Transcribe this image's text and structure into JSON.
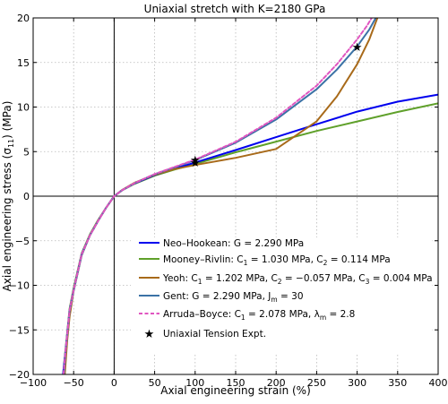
{
  "chart_data": {
    "type": "line",
    "title": "Uniaxial stretch with K=2180 GPa",
    "xlabel": "Axial engineering strain (%)",
    "ylabel": "Axial engineering stress (σ",
    "ylabel_sub": "11",
    "ylabel_suffix": ") (MPa)",
    "xlim": [
      -100,
      400
    ],
    "ylim": [
      -20,
      20
    ],
    "xticks": [
      -100,
      -50,
      0,
      50,
      100,
      150,
      200,
      250,
      300,
      350,
      400
    ],
    "xtick_labels": [
      "−100",
      "−50",
      "0",
      "50",
      "100",
      "150",
      "200",
      "250",
      "300",
      "350",
      "400"
    ],
    "yticks": [
      -20,
      -15,
      -10,
      -5,
      0,
      5,
      10,
      15,
      20
    ],
    "ytick_labels": [
      "−20",
      "−15",
      "−10",
      "−5",
      "0",
      "5",
      "10",
      "15",
      "20"
    ],
    "grid": true,
    "legend_position": "lower-right",
    "series": [
      {
        "name": "Neo–Hookean: G = 2.290 MPa",
        "color": "#0000ee",
        "style": "solid",
        "x": [
          -63,
          -60,
          -55,
          -50,
          -40,
          -30,
          -20,
          -10,
          0,
          10,
          25,
          50,
          75,
          100,
          150,
          200,
          250,
          300,
          350,
          400
        ],
        "y": [
          -20.0,
          -17.3,
          -12.8,
          -10.5,
          -6.5,
          -4.4,
          -2.8,
          -1.3,
          0.0,
          0.68,
          1.43,
          2.37,
          3.1,
          3.78,
          5.18,
          6.62,
          8.07,
          9.49,
          10.6,
          11.4
        ]
      },
      {
        "name": "Mooney–Rivlin: C1 = 1.030 MPa, C2 = 0.114 MPa",
        "label_parts": [
          "Mooney–Rivlin: C",
          "1",
          " = 1.030 MPa, C",
          "2",
          " = 0.114 MPa"
        ],
        "color": "#5fa02a",
        "style": "solid",
        "x": [
          -63,
          -60,
          -55,
          -50,
          -40,
          -30,
          -20,
          -10,
          0,
          10,
          25,
          50,
          75,
          100,
          150,
          200,
          250,
          300,
          350,
          400
        ],
        "y": [
          -20.0,
          -17.1,
          -12.6,
          -10.3,
          -6.4,
          -4.3,
          -2.7,
          -1.3,
          0.0,
          0.66,
          1.38,
          2.3,
          3.0,
          3.62,
          4.92,
          6.12,
          7.32,
          8.38,
          9.45,
          10.42
        ]
      },
      {
        "name": "Yeoh: C1 = 1.202 MPa, C2 = −0.057 MPa, C3 = 0.004 MPa",
        "label_parts": [
          "Yeoh: C",
          "1",
          " = 1.202 MPa, C",
          "2",
          " = −0.057 MPa, C",
          "3",
          " = 0.004 MPa"
        ],
        "color": "#a86a1a",
        "style": "solid",
        "x": [
          -61,
          -58,
          -55,
          -50,
          -40,
          -30,
          -20,
          -10,
          0,
          10,
          25,
          50,
          75,
          100,
          150,
          200,
          250,
          275,
          300,
          315,
          325
        ],
        "y": [
          -20.0,
          -16.2,
          -13.5,
          -10.6,
          -6.6,
          -4.4,
          -2.8,
          -1.3,
          0.0,
          0.7,
          1.5,
          2.4,
          3.05,
          3.5,
          4.3,
          5.3,
          8.4,
          11.2,
          14.8,
          17.6,
          20.0
        ]
      },
      {
        "name": "Gent: G = 2.290 MPa, Jm = 30",
        "label_parts": [
          "Gent: G = 2.290 MPa, J",
          "m",
          " = 30"
        ],
        "color": "#3b72a6",
        "style": "solid",
        "x": [
          -62,
          -60,
          -55,
          -50,
          -40,
          -30,
          -20,
          -10,
          0,
          10,
          25,
          50,
          75,
          100,
          150,
          200,
          250,
          275,
          300,
          315,
          323
        ],
        "y": [
          -20.0,
          -17.4,
          -12.9,
          -10.6,
          -6.6,
          -4.4,
          -2.8,
          -1.3,
          0.0,
          0.68,
          1.45,
          2.45,
          3.25,
          4.05,
          6.0,
          8.6,
          12.0,
          14.2,
          16.8,
          18.7,
          20.0
        ]
      },
      {
        "name": "Arruda–Boyce: C1 = 2.078 MPa, λm = 2.8",
        "label_parts": [
          "Arruda–Boyce: C",
          "1",
          " = 2.078 MPa, λ",
          "m",
          " = 2.8"
        ],
        "color": "#e055c0",
        "style": "dashed",
        "x": [
          -62.5,
          -60,
          -55,
          -50,
          -40,
          -30,
          -20,
          -10,
          0,
          10,
          25,
          50,
          75,
          100,
          150,
          200,
          250,
          275,
          300,
          312,
          318
        ],
        "y": [
          -20.0,
          -17.3,
          -12.8,
          -10.5,
          -6.5,
          -4.4,
          -2.8,
          -1.3,
          0.0,
          0.68,
          1.46,
          2.48,
          3.3,
          4.1,
          6.1,
          8.8,
          12.4,
          14.8,
          17.6,
          19.1,
          20.0
        ]
      }
    ],
    "experiment": {
      "name": "Uniaxial Tension Expt.",
      "marker": "★",
      "x": [
        100,
        100,
        300
      ],
      "y": [
        4.1,
        3.8,
        16.8
      ]
    }
  }
}
